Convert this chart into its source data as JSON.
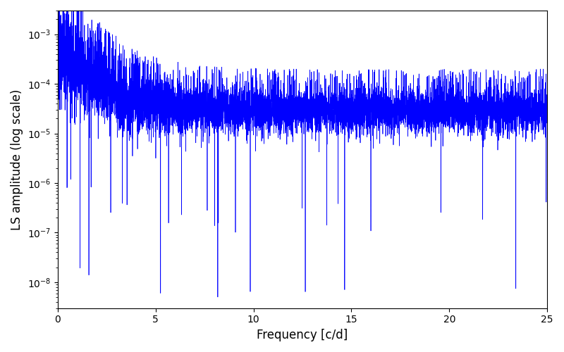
{
  "title": "",
  "xlabel": "Frequency [c/d]",
  "ylabel": "LS amplitude (log scale)",
  "xlim": [
    0,
    25
  ],
  "ylim": [
    3e-09,
    0.003
  ],
  "yticks": [
    1e-08,
    1e-07,
    1e-06,
    1e-05,
    0.0001,
    0.001
  ],
  "xticks": [
    0,
    5,
    10,
    15,
    20,
    25
  ],
  "line_color": "#0000ff",
  "line_width": 0.5,
  "background_color": "#ffffff",
  "figsize": [
    8.0,
    5.0
  ],
  "dpi": 100,
  "n_points": 8000,
  "seed": 12345
}
